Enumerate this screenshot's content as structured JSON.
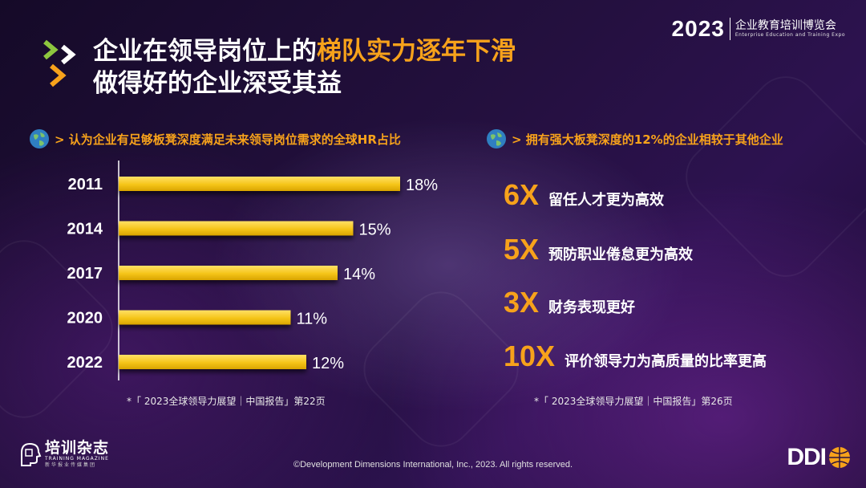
{
  "expo": {
    "year": "2023",
    "name_cn": "企业教育培训博览会",
    "name_en": "Enterprise Education and Training Expo"
  },
  "title": {
    "line1_a": "企业在领导岗位上的",
    "line1_b": "梯队实力逐年下滑",
    "line2": "做得好的企业深受其益"
  },
  "left_section": {
    "heading": "> 认为企业有足够板凳深度满足未来领导岗位需求的全球HR占比",
    "source": "*「 2023全球领导力展望｜中国报告」第22页"
  },
  "right_section": {
    "heading": "> 拥有强大板凳深度的12%的企业相较于其他企业",
    "items": [
      {
        "value": "6X",
        "desc": "留任人才更为高效"
      },
      {
        "value": "5X",
        "desc": "预防职业倦怠更为高效"
      },
      {
        "value": "3X",
        "desc": "财务表现更好"
      },
      {
        "value": "10X",
        "desc": "评价领导力为高质量的比率更高"
      }
    ],
    "source": "*「 2023全球领导力展望｜中国报告」第26页"
  },
  "chart_data": {
    "type": "bar",
    "orientation": "horizontal",
    "title": "",
    "categories": [
      "2011",
      "2014",
      "2017",
      "2020",
      "2022"
    ],
    "values": [
      18,
      15,
      14,
      11,
      12
    ],
    "value_labels": [
      "18%",
      "15%",
      "14%",
      "11%",
      "12%"
    ],
    "unit": "%",
    "xlim": [
      0,
      20
    ],
    "grid": false,
    "legend": "none",
    "bar_color": "#f5c518"
  },
  "footer": {
    "magazine_cn": "培训杂志",
    "magazine_en": "TRAINING MAGAZINE",
    "magazine_sub": "新华报业传媒集团",
    "copyright": "©Development Dimensions International, Inc., 2023. All rights reserved.",
    "ddi": "DDI"
  },
  "colors": {
    "accent": "#f7a21b",
    "bar": "#f5c518",
    "chevron_green": "#8dc63f",
    "chevron_white": "#ffffff"
  },
  "icons": {
    "title_marker": "double-chevron-icon",
    "section_marker": "globe-icon",
    "ddi_mark": "globe-ball-icon"
  }
}
